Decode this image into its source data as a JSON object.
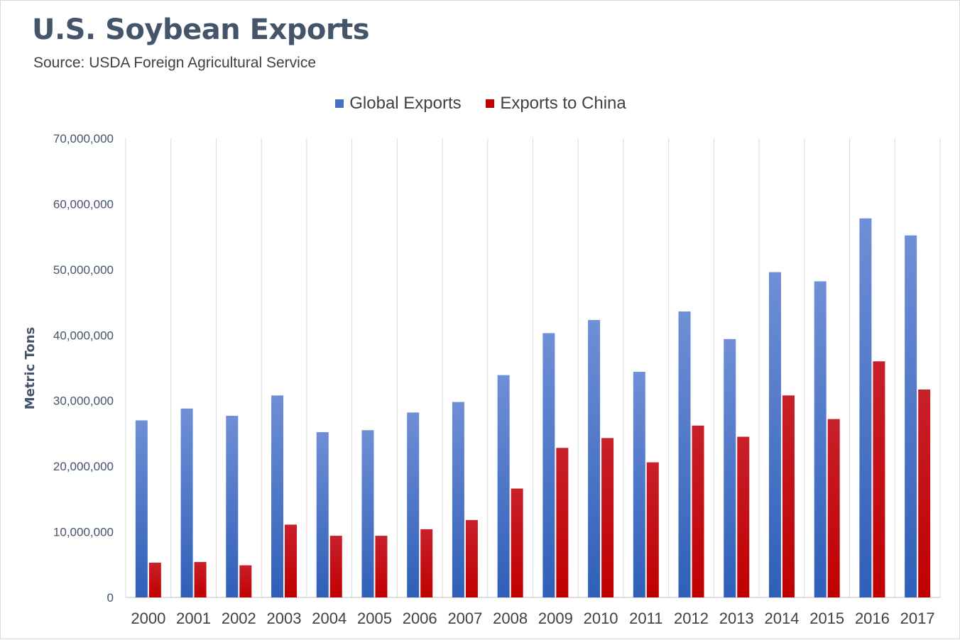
{
  "title": "U.S. Soybean Exports",
  "subtitle": "Source: USDA Foreign Agricultural Service",
  "colors": {
    "global": "#4472c4",
    "china": "#c00000",
    "grid": "#d9d9d9",
    "text": "#44546a"
  },
  "chart_data": {
    "type": "bar",
    "categories": [
      "2000",
      "2001",
      "2002",
      "2003",
      "2004",
      "2005",
      "2006",
      "2007",
      "2008",
      "2009",
      "2010",
      "2011",
      "2012",
      "2013",
      "2014",
      "2015",
      "2016",
      "2017"
    ],
    "series": [
      {
        "name": "Global Exports",
        "values": [
          27000000,
          28800000,
          27700000,
          30800000,
          25200000,
          25500000,
          28200000,
          29800000,
          33900000,
          40300000,
          42300000,
          34400000,
          43600000,
          39400000,
          49600000,
          48200000,
          57800000,
          55200000
        ]
      },
      {
        "name": "Exports to China",
        "values": [
          5300000,
          5400000,
          4900000,
          11100000,
          9400000,
          9400000,
          10400000,
          11800000,
          16600000,
          22800000,
          24300000,
          20600000,
          26200000,
          24500000,
          30800000,
          27200000,
          36000000,
          31700000
        ]
      }
    ],
    "ylabel": "Metric Tons",
    "xlabel": "",
    "ylim": [
      0,
      70000000
    ],
    "yticks": [
      "0",
      "10,000,000",
      "20,000,000",
      "30,000,000",
      "40,000,000",
      "50,000,000",
      "60,000,000",
      "70,000,000"
    ],
    "legend_position": "top-center",
    "grid": "vertical"
  }
}
